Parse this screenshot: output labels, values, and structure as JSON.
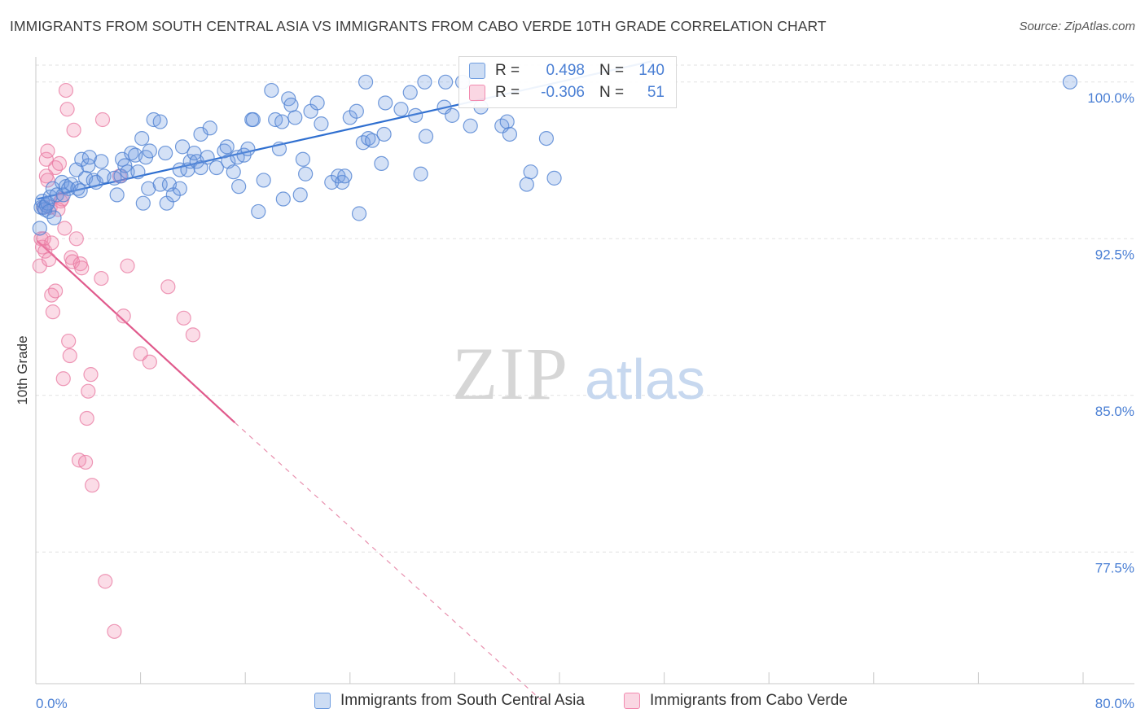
{
  "title": "IMMIGRANTS FROM SOUTH CENTRAL ASIA VS IMMIGRANTS FROM CABO VERDE 10TH GRADE CORRELATION CHART",
  "source": "Source: ZipAtlas.com",
  "watermark": {
    "zip": "ZIP",
    "atlas": "atlas"
  },
  "legend_top": {
    "rows": [
      {
        "r_label": "R =",
        "r_value": "0.498",
        "n_label": "N =",
        "n_value": "140",
        "color": "#6f9de0"
      },
      {
        "r_label": "R =",
        "r_value": "-0.306",
        "n_label": "N =",
        "n_value": "51",
        "color": "#f28bb0"
      }
    ]
  },
  "legend_bottom": [
    {
      "label": "Immigrants from South Central Asia",
      "color": "#6f9de0"
    },
    {
      "label": "Immigrants from Cabo Verde",
      "color": "#f28bb0"
    }
  ],
  "chart_data": {
    "type": "scatter",
    "xlabel": "",
    "ylabel": "10th Grade",
    "xlim": [
      0,
      80
    ],
    "ylim": [
      71.2,
      101.2
    ],
    "x_tick_labels": [
      "0.0%",
      "80.0%"
    ],
    "y_ticks": [
      {
        "value": 100.0,
        "label": "100.0%"
      },
      {
        "value": 92.5,
        "label": "92.5%"
      },
      {
        "value": 85.0,
        "label": "85.0%"
      },
      {
        "value": 77.5,
        "label": "77.5%"
      }
    ],
    "grid": "horizontal dashed",
    "series": [
      {
        "name": "Immigrants from South Central Asia",
        "color": "#6f9de0",
        "trend": {
          "x": [
            0.1,
            47.1
          ],
          "y": [
            94.4,
            101.0
          ],
          "style": "solid",
          "color": "#2f6fd0"
        },
        "points": [
          [
            0.3,
            93.0
          ],
          [
            0.4,
            94.0
          ],
          [
            0.5,
            94.3
          ],
          [
            0.6,
            94.0
          ],
          [
            0.7,
            93.9
          ],
          [
            0.8,
            94.1
          ],
          [
            0.9,
            94.2
          ],
          [
            1.0,
            93.8
          ],
          [
            1.1,
            94.5
          ],
          [
            1.3,
            94.9
          ],
          [
            1.4,
            93.5
          ],
          [
            1.6,
            94.6
          ],
          [
            2.0,
            95.2
          ],
          [
            2.1,
            94.6
          ],
          [
            2.3,
            95.0
          ],
          [
            2.5,
            94.9
          ],
          [
            2.7,
            95.1
          ],
          [
            3.1,
            95.8
          ],
          [
            3.2,
            94.9
          ],
          [
            3.4,
            94.8
          ],
          [
            3.5,
            96.3
          ],
          [
            3.8,
            95.4
          ],
          [
            4.0,
            96.0
          ],
          [
            4.1,
            96.4
          ],
          [
            4.4,
            95.3
          ],
          [
            4.6,
            95.2
          ],
          [
            5.0,
            96.2
          ],
          [
            5.2,
            95.5
          ],
          [
            6.0,
            95.4
          ],
          [
            6.2,
            94.6
          ],
          [
            6.5,
            95.5
          ],
          [
            6.6,
            96.3
          ],
          [
            6.8,
            96.0
          ],
          [
            7.0,
            95.7
          ],
          [
            7.3,
            96.6
          ],
          [
            7.6,
            96.5
          ],
          [
            7.8,
            95.7
          ],
          [
            8.1,
            97.3
          ],
          [
            8.2,
            94.2
          ],
          [
            8.4,
            96.4
          ],
          [
            8.6,
            94.9
          ],
          [
            8.7,
            96.7
          ],
          [
            9.0,
            98.2
          ],
          [
            9.5,
            98.1
          ],
          [
            9.5,
            95.1
          ],
          [
            9.9,
            96.6
          ],
          [
            10.0,
            94.2
          ],
          [
            10.2,
            95.1
          ],
          [
            10.5,
            94.6
          ],
          [
            11.0,
            94.9
          ],
          [
            11.0,
            95.8
          ],
          [
            11.2,
            96.9
          ],
          [
            11.6,
            95.8
          ],
          [
            11.8,
            96.2
          ],
          [
            12.1,
            96.6
          ],
          [
            12.3,
            96.2
          ],
          [
            12.6,
            97.5
          ],
          [
            12.6,
            95.9
          ],
          [
            13.1,
            96.4
          ],
          [
            13.3,
            97.8
          ],
          [
            13.8,
            95.9
          ],
          [
            14.4,
            96.7
          ],
          [
            14.6,
            96.9
          ],
          [
            14.7,
            96.2
          ],
          [
            15.1,
            95.7
          ],
          [
            15.4,
            96.4
          ],
          [
            15.5,
            95.0
          ],
          [
            15.9,
            96.5
          ],
          [
            16.2,
            96.8
          ],
          [
            16.5,
            98.2
          ],
          [
            16.6,
            98.2
          ],
          [
            17.0,
            93.8
          ],
          [
            17.4,
            95.3
          ],
          [
            18.0,
            99.6
          ],
          [
            18.3,
            98.2
          ],
          [
            18.6,
            96.8
          ],
          [
            18.8,
            98.1
          ],
          [
            18.9,
            94.4
          ],
          [
            19.3,
            99.2
          ],
          [
            19.5,
            98.9
          ],
          [
            19.8,
            98.3
          ],
          [
            20.2,
            94.6
          ],
          [
            20.4,
            96.3
          ],
          [
            20.6,
            95.6
          ],
          [
            21.0,
            98.6
          ],
          [
            21.5,
            99.0
          ],
          [
            21.8,
            98.0
          ],
          [
            22.6,
            95.2
          ],
          [
            23.1,
            95.5
          ],
          [
            23.4,
            95.2
          ],
          [
            23.6,
            95.5
          ],
          [
            24.0,
            98.3
          ],
          [
            24.5,
            98.6
          ],
          [
            24.7,
            93.7
          ],
          [
            25.0,
            97.1
          ],
          [
            25.2,
            100.0
          ],
          [
            25.4,
            97.3
          ],
          [
            25.7,
            97.2
          ],
          [
            26.4,
            96.1
          ],
          [
            26.6,
            97.5
          ],
          [
            26.7,
            99.0
          ],
          [
            27.9,
            98.7
          ],
          [
            28.6,
            99.5
          ],
          [
            29.0,
            98.4
          ],
          [
            29.4,
            95.6
          ],
          [
            29.7,
            100.0
          ],
          [
            29.8,
            97.4
          ],
          [
            31.2,
            98.8
          ],
          [
            31.3,
            100.0
          ],
          [
            31.8,
            98.4
          ],
          [
            32.6,
            100.0
          ],
          [
            33.2,
            97.9
          ],
          [
            34.0,
            98.8
          ],
          [
            35.6,
            97.9
          ],
          [
            36.0,
            98.1
          ],
          [
            36.2,
            97.5
          ],
          [
            37.5,
            95.1
          ],
          [
            37.8,
            95.7
          ],
          [
            39.0,
            97.3
          ],
          [
            39.6,
            95.4
          ],
          [
            79.0,
            100.0
          ]
        ]
      },
      {
        "name": "Immigrants from Cabo Verde",
        "color": "#f28bb0",
        "trend_solid": {
          "x": [
            0.1,
            15.2
          ],
          "y": [
            92.4,
            83.7
          ],
          "style": "solid",
          "color": "#e05a8c"
        },
        "trend_dashed": {
          "x": [
            15.2,
            38.8
          ],
          "y": [
            83.7,
            70.3
          ],
          "style": "dashed",
          "color": "#e890ae"
        },
        "points": [
          [
            0.3,
            91.2
          ],
          [
            0.4,
            92.5
          ],
          [
            0.5,
            92.1
          ],
          [
            0.6,
            92.5
          ],
          [
            0.7,
            91.9
          ],
          [
            0.8,
            96.3
          ],
          [
            0.8,
            95.5
          ],
          [
            0.9,
            96.7
          ],
          [
            0.9,
            95.3
          ],
          [
            1.0,
            91.5
          ],
          [
            1.1,
            94.0
          ],
          [
            1.2,
            89.8
          ],
          [
            1.3,
            89.0
          ],
          [
            1.5,
            90.0
          ],
          [
            1.5,
            95.9
          ],
          [
            1.8,
            96.1
          ],
          [
            1.9,
            94.3
          ],
          [
            2.0,
            94.4
          ],
          [
            2.1,
            85.8
          ],
          [
            2.3,
            99.6
          ],
          [
            2.4,
            98.7
          ],
          [
            2.5,
            87.6
          ],
          [
            2.6,
            86.9
          ],
          [
            2.7,
            91.6
          ],
          [
            2.8,
            91.4
          ],
          [
            2.9,
            97.7
          ],
          [
            3.1,
            92.5
          ],
          [
            3.3,
            81.9
          ],
          [
            3.4,
            91.3
          ],
          [
            3.5,
            91.1
          ],
          [
            3.8,
            81.8
          ],
          [
            3.9,
            83.9
          ],
          [
            4.0,
            85.2
          ],
          [
            4.2,
            86.0
          ],
          [
            4.3,
            80.7
          ],
          [
            5.0,
            90.6
          ],
          [
            5.1,
            98.2
          ],
          [
            5.3,
            76.1
          ],
          [
            6.0,
            73.7
          ],
          [
            6.4,
            95.5
          ],
          [
            6.7,
            88.8
          ],
          [
            7.0,
            91.2
          ],
          [
            8.0,
            87.0
          ],
          [
            8.7,
            86.6
          ],
          [
            10.1,
            90.2
          ],
          [
            11.3,
            88.7
          ],
          [
            12.0,
            87.9
          ],
          [
            0.6,
            94.0
          ],
          [
            1.2,
            92.3
          ],
          [
            1.7,
            93.9
          ],
          [
            2.2,
            93.0
          ]
        ]
      }
    ]
  }
}
